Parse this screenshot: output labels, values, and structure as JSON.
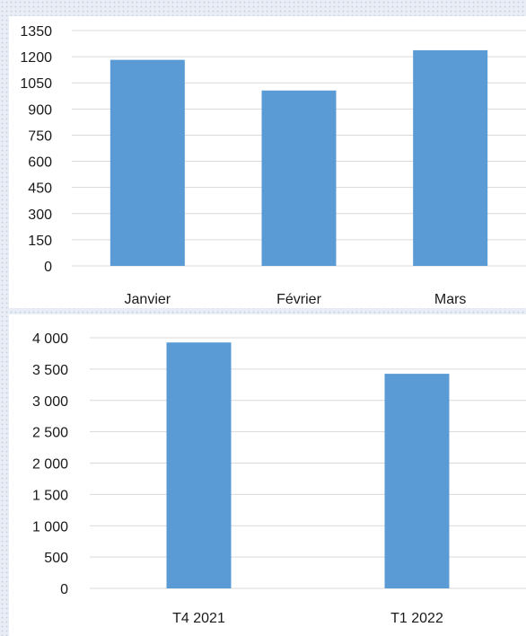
{
  "chart_data": [
    {
      "type": "bar",
      "categories": [
        "Janvier",
        "Février",
        "Mars"
      ],
      "series": [
        {
          "values": [
            1182,
            1006,
            1237
          ]
        }
      ],
      "yticks": [
        "0",
        "150",
        "300",
        "450",
        "600",
        "750",
        "900",
        "1050",
        "1200",
        "1350"
      ],
      "ylim": [
        0,
        1350
      ],
      "grid": true,
      "colors": {
        "bar": "#5b9bd5",
        "grid": "#d9d9d9"
      }
    },
    {
      "type": "bar",
      "categories": [
        "T4 2021",
        "T1 2022"
      ],
      "series": [
        {
          "values": [
            3925,
            3425
          ]
        }
      ],
      "yticks": [
        "0",
        "500",
        "1 000",
        "1 500",
        "2 000",
        "2 500",
        "3 000",
        "3 500",
        "4 000"
      ],
      "ylim": [
        0,
        4000
      ],
      "grid": true,
      "colors": {
        "bar": "#5b9bd5",
        "grid": "#d9d9d9"
      }
    }
  ]
}
